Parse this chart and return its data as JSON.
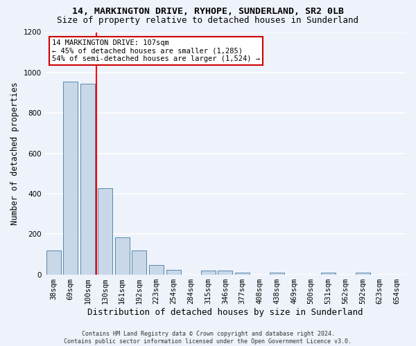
{
  "title1": "14, MARKINGTON DRIVE, RYHOPE, SUNDERLAND, SR2 0LB",
  "title2": "Size of property relative to detached houses in Sunderland",
  "xlabel": "Distribution of detached houses by size in Sunderland",
  "ylabel": "Number of detached properties",
  "categories": [
    "38sqm",
    "69sqm",
    "100sqm",
    "130sqm",
    "161sqm",
    "192sqm",
    "223sqm",
    "254sqm",
    "284sqm",
    "315sqm",
    "346sqm",
    "377sqm",
    "408sqm",
    "438sqm",
    "469sqm",
    "500sqm",
    "531sqm",
    "562sqm",
    "592sqm",
    "623sqm",
    "654sqm"
  ],
  "values": [
    120,
    955,
    945,
    428,
    185,
    120,
    45,
    22,
    0,
    18,
    18,
    10,
    0,
    10,
    0,
    0,
    10,
    0,
    10,
    0,
    0
  ],
  "ylim": [
    0,
    1200
  ],
  "yticks": [
    0,
    200,
    400,
    600,
    800,
    1000,
    1200
  ],
  "bar_color": "#c8d8e8",
  "bar_edge_color": "#5588aa",
  "red_line_x": 2.5,
  "annotation_text": "14 MARKINGTON DRIVE: 107sqm\n← 45% of detached houses are smaller (1,285)\n54% of semi-detached houses are larger (1,524) →",
  "annotation_box_color": "#ffffff",
  "annotation_box_edge": "#cc0000",
  "footer1": "Contains HM Land Registry data © Crown copyright and database right 2024.",
  "footer2": "Contains public sector information licensed under the Open Government Licence v3.0.",
  "background_color": "#eef2fa",
  "grid_color": "#ffffff",
  "title_fontsize": 9.5,
  "subtitle_fontsize": 9,
  "tick_fontsize": 7.5,
  "ylabel_fontsize": 8.5,
  "xlabel_fontsize": 9,
  "annotation_fontsize": 7.5,
  "footer_fontsize": 6
}
